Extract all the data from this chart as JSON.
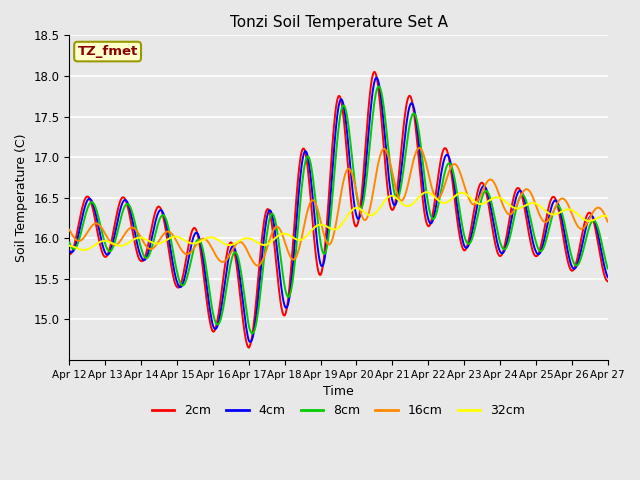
{
  "title": "Tonzi Soil Temperature Set A",
  "xlabel": "Time",
  "ylabel": "Soil Temperature (C)",
  "ylim": [
    14.5,
    18.5
  ],
  "yticks": [
    15.0,
    15.5,
    16.0,
    16.5,
    17.0,
    17.5,
    18.0,
    18.5
  ],
  "xtick_labels": [
    "Apr 12",
    "Apr 13",
    "Apr 14",
    "Apr 15",
    "Apr 16",
    "Apr 17",
    "Apr 18",
    "Apr 19",
    "Apr 20",
    "Apr 21",
    "Apr 22",
    "Apr 23",
    "Apr 24",
    "Apr 25",
    "Apr 26",
    "Apr 27"
  ],
  "legend_label": "TZ_fmet",
  "series_labels": [
    "2cm",
    "4cm",
    "8cm",
    "16cm",
    "32cm"
  ],
  "series_colors": [
    "#ff0000",
    "#0000ff",
    "#00cc00",
    "#ff8800",
    "#ffff00"
  ],
  "background_color": "#e8e8e8",
  "grid_color": "#ffffff",
  "n_points": 720,
  "days": 15,
  "figwidth": 6.4,
  "figheight": 4.8,
  "dpi": 100
}
